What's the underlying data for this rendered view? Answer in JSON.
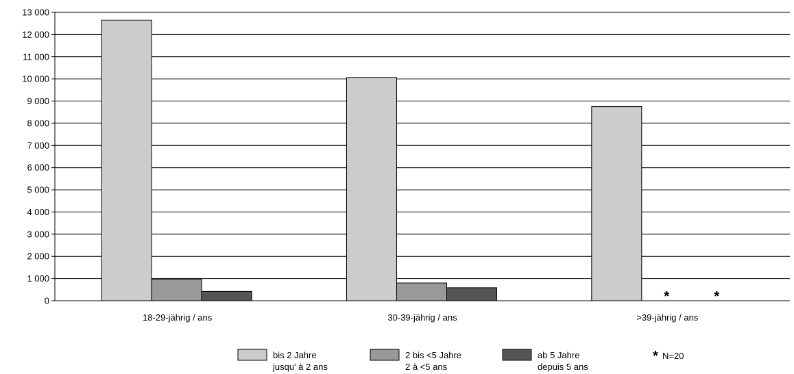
{
  "chart_data": {
    "type": "bar",
    "title": "",
    "ylabel": "",
    "xlabel": "",
    "ylim": [
      0,
      13000
    ],
    "ytick_step": 1000,
    "ytick_labels": [
      "0",
      "1 000",
      "2 000",
      "3 000",
      "4 000",
      "5 000",
      "6 000",
      "7 000",
      "8 000",
      "9 000",
      "10 000",
      "11 000",
      "12 000",
      "13 000"
    ],
    "grid": true,
    "legend_position": "bottom",
    "categories": [
      "18-29-jährig / ans",
      "30-39-jährig / ans",
      ">39-jährig / ans"
    ],
    "series": [
      {
        "name_line1": "bis 2 Jahre",
        "name_line2": "jusqu' à 2 ans",
        "color": "#cccccc",
        "values": [
          12650,
          10050,
          8750
        ]
      },
      {
        "name_line1": "2 bis <5 Jahre",
        "name_line2": "2 à <5 ans",
        "color": "#999999",
        "values": [
          970,
          800,
          null
        ]
      },
      {
        "name_line1": "ab 5 Jahre",
        "name_line2": "depuis 5 ans",
        "color": "#555555",
        "values": [
          420,
          590,
          null
        ]
      }
    ],
    "missing_marker": "*",
    "note": "N=20"
  }
}
